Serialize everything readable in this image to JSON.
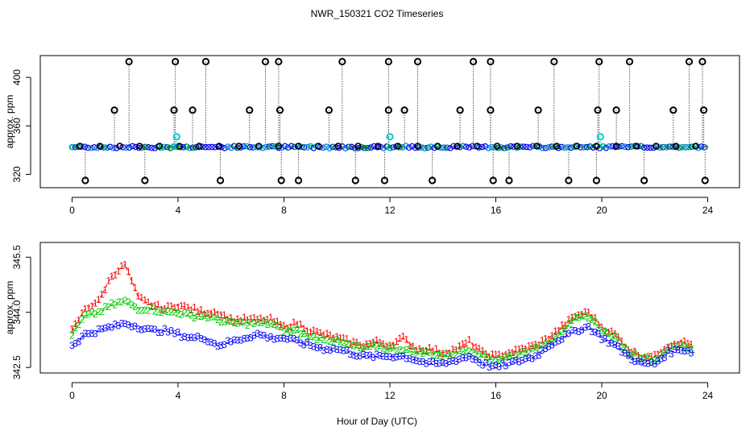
{
  "chart_data": [
    {
      "type": "scatter",
      "panel": "top",
      "title": "NWR_150321  CO2 Timeseries",
      "xlabel": "",
      "ylabel": "approx. ppm",
      "xlim": [
        -1.2,
        25.2
      ],
      "ylim": [
        309,
        418
      ],
      "xticks": [
        0,
        4,
        8,
        12,
        16,
        20,
        24
      ],
      "yticks": [
        320,
        360,
        400
      ],
      "baseline": 342.5,
      "spike_value": 413,
      "dip_value": 315,
      "mid_value": 373,
      "spike_times": [
        2.15,
        3.9,
        5.05,
        7.3,
        7.8,
        10.2,
        11.95,
        13.05,
        15.15,
        15.8,
        18.2,
        19.9,
        21.05,
        23.3,
        23.8
      ],
      "dip_times": [
        0.5,
        2.75,
        5.6,
        7.9,
        8.55,
        10.7,
        11.8,
        13.6,
        15.9,
        16.5,
        18.75,
        19.8,
        21.6,
        23.9
      ],
      "mid_times": [
        1.6,
        3.85,
        4.55,
        6.7,
        7.85,
        9.7,
        11.95,
        12.55,
        14.65,
        15.8,
        17.6,
        19.85,
        20.55,
        22.7,
        23.85
      ],
      "cyan_times": [
        3.95,
        12.0,
        19.95
      ],
      "cyan_value": 351,
      "series_colors": {
        "ref": "#000000",
        "line1": "#ff0000",
        "line2": "#00cc00",
        "line3": "#0000ff",
        "highlight": "#00cccc"
      }
    },
    {
      "type": "line",
      "panel": "bottom",
      "title": "",
      "xlabel": "Hour of Day (UTC)",
      "ylabel": "approx. ppm",
      "xlim": [
        -1.2,
        25.2
      ],
      "ylim": [
        342.35,
        345.9
      ],
      "xticks": [
        0,
        4,
        8,
        12,
        16,
        20,
        24
      ],
      "yticks": [
        342.5,
        344.0,
        345.5
      ],
      "ytick_labels": [
        "342.5",
        "344.0",
        "345.5"
      ],
      "legend": "none (series drawn as digits 1, 2, 3)",
      "series": [
        {
          "name": "1",
          "color": "#ff0000",
          "x": [
            0,
            0.5,
            1,
            1.5,
            2,
            2.5,
            3,
            3.5,
            4,
            4.5,
            5,
            5.5,
            6,
            6.5,
            7,
            7.5,
            8,
            8.5,
            9,
            9.5,
            10,
            10.5,
            11,
            11.5,
            12,
            12.5,
            13,
            13.5,
            14,
            14.5,
            15,
            15.5,
            16,
            16.5,
            17,
            17.5,
            18,
            18.5,
            19,
            19.5,
            20,
            20.5,
            21,
            21.5,
            22,
            22.5,
            23,
            23.5
          ],
          "values": [
            343.5,
            344.1,
            344.3,
            345.0,
            345.3,
            344.4,
            344.2,
            344.1,
            344.2,
            344.1,
            344.0,
            344.0,
            343.8,
            343.8,
            343.8,
            343.8,
            343.6,
            343.7,
            343.5,
            343.4,
            343.3,
            343.2,
            343.1,
            343.2,
            343.1,
            343.3,
            343.0,
            343.0,
            342.9,
            343.0,
            343.2,
            342.9,
            342.8,
            342.9,
            343.0,
            343.1,
            343.3,
            343.6,
            343.9,
            344.0,
            343.6,
            343.4,
            343.0,
            342.8,
            342.8,
            343.1,
            343.2,
            343.1
          ]
        },
        {
          "name": "2",
          "color": "#00cc00",
          "x": [
            0,
            0.5,
            1,
            1.5,
            2,
            2.5,
            3,
            3.5,
            4,
            4.5,
            5,
            5.5,
            6,
            6.5,
            7,
            7.5,
            8,
            8.5,
            9,
            9.5,
            10,
            10.5,
            11,
            11.5,
            12,
            12.5,
            13,
            13.5,
            14,
            14.5,
            15,
            15.5,
            16,
            16.5,
            17,
            17.5,
            18,
            18.5,
            19,
            19.5,
            20,
            20.5,
            21,
            21.5,
            22,
            22.5,
            23,
            23.5
          ],
          "values": [
            343.4,
            343.9,
            344.0,
            344.2,
            344.3,
            344.1,
            344.1,
            344.0,
            344.0,
            343.9,
            343.9,
            343.8,
            343.7,
            343.7,
            343.7,
            343.7,
            343.5,
            343.5,
            343.3,
            343.3,
            343.2,
            343.1,
            343.0,
            343.1,
            343.0,
            343.0,
            342.9,
            342.9,
            342.8,
            342.9,
            343.0,
            342.8,
            342.7,
            342.8,
            342.9,
            343.0,
            343.2,
            343.5,
            343.8,
            343.9,
            343.5,
            343.3,
            342.9,
            342.8,
            342.7,
            343.0,
            343.1,
            343.0
          ]
        },
        {
          "name": "3",
          "color": "#0000ff",
          "x": [
            0,
            0.5,
            1,
            1.5,
            2,
            2.5,
            3,
            3.5,
            4,
            4.5,
            5,
            5.5,
            6,
            6.5,
            7,
            7.5,
            8,
            8.5,
            9,
            9.5,
            10,
            10.5,
            11,
            11.5,
            12,
            12.5,
            13,
            13.5,
            14,
            14.5,
            15,
            15.5,
            16,
            16.5,
            17,
            17.5,
            18,
            18.5,
            19,
            19.5,
            20,
            20.5,
            21,
            21.5,
            22,
            22.5,
            23,
            23.5
          ],
          "values": [
            343.1,
            343.4,
            343.5,
            343.6,
            343.7,
            343.6,
            343.5,
            343.5,
            343.4,
            343.3,
            343.3,
            343.1,
            343.2,
            343.3,
            343.4,
            343.3,
            343.3,
            343.2,
            343.1,
            343.0,
            343.0,
            342.9,
            342.8,
            342.8,
            342.8,
            342.8,
            342.7,
            342.6,
            342.6,
            342.7,
            342.8,
            342.6,
            342.5,
            342.6,
            342.7,
            342.8,
            343.1,
            343.3,
            343.5,
            343.6,
            343.3,
            343.1,
            342.8,
            342.6,
            342.6,
            342.9,
            343.0,
            342.9
          ]
        }
      ]
    }
  ]
}
